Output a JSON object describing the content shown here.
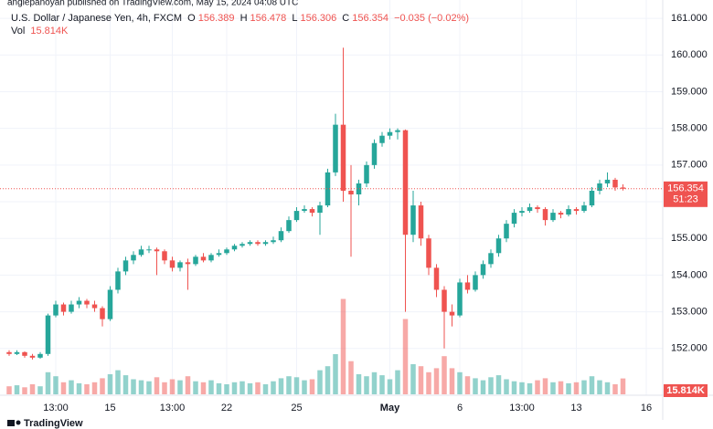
{
  "chart_data": {
    "type": "candlestick",
    "published": "anglepanoyan published on TradingView.com, May 15, 2024 04:08 UTC",
    "title": "U.S. Dollar / Japanese Yen, 4h, FXCM",
    "ohlc_letters": [
      "O",
      "H",
      "L",
      "C"
    ],
    "change": "−0.035 (−0.02%)",
    "countdown": "51:23",
    "brand": "TradingView",
    "up_color": "#26a69a",
    "down_color": "#ef5350",
    "grid": true,
    "ylim": [
      150.8,
      161.5
    ],
    "yticks": [
      {
        "value": 152,
        "label": "152.000"
      },
      {
        "value": 153,
        "label": "153.000"
      },
      {
        "value": 154,
        "label": "154.000"
      },
      {
        "value": 155,
        "label": "155.000"
      },
      {
        "value": 156,
        "label": "156.000"
      },
      {
        "value": 157,
        "label": "157.000"
      },
      {
        "value": 158,
        "label": "158.000"
      },
      {
        "value": 159,
        "label": "159.000"
      },
      {
        "value": 160,
        "label": "160.000"
      },
      {
        "value": 161,
        "label": "161.000"
      }
    ],
    "categories": [
      null,
      null,
      null,
      null,
      null,
      null,
      "13:00",
      null,
      null,
      null,
      null,
      null,
      null,
      "15",
      null,
      null,
      null,
      null,
      null,
      null,
      null,
      "13:00",
      null,
      null,
      null,
      null,
      null,
      null,
      "22",
      null,
      null,
      null,
      null,
      null,
      null,
      null,
      null,
      "25",
      null,
      null,
      null,
      null,
      null,
      null,
      null,
      null,
      null,
      null,
      null,
      "May",
      null,
      null,
      null,
      null,
      null,
      null,
      null,
      null,
      "6",
      null,
      null,
      null,
      null,
      null,
      null,
      null,
      "13:00",
      null,
      null,
      null,
      null,
      null,
      null,
      "13",
      null,
      null,
      null,
      null,
      null,
      null,
      null,
      null,
      "16"
    ],
    "candles": [
      [
        151.9,
        151.95,
        151.8,
        151.85
      ],
      [
        151.85,
        151.95,
        151.82,
        151.9
      ],
      [
        151.9,
        151.92,
        151.75,
        151.8
      ],
      [
        151.8,
        151.85,
        151.7,
        151.75
      ],
      [
        151.75,
        151.9,
        151.72,
        151.85
      ],
      [
        151.85,
        152.95,
        151.8,
        152.9
      ],
      [
        152.9,
        153.3,
        152.85,
        153.2
      ],
      [
        153.2,
        153.25,
        152.9,
        153.0
      ],
      [
        153.0,
        153.3,
        152.95,
        153.2
      ],
      [
        153.2,
        153.4,
        153.1,
        153.3
      ],
      [
        153.3,
        153.35,
        153.1,
        153.2
      ],
      [
        153.2,
        153.3,
        153.0,
        153.1
      ],
      [
        153.1,
        153.15,
        152.6,
        152.8
      ],
      [
        152.8,
        153.7,
        152.75,
        153.6
      ],
      [
        153.6,
        154.2,
        153.5,
        154.1
      ],
      [
        154.1,
        154.5,
        154.0,
        154.4
      ],
      [
        154.4,
        154.65,
        154.3,
        154.55
      ],
      [
        154.55,
        154.8,
        154.5,
        154.7
      ],
      [
        154.7,
        154.8,
        154.6,
        154.7
      ],
      [
        154.7,
        154.75,
        154.0,
        154.65
      ],
      [
        154.65,
        154.7,
        154.3,
        154.4
      ],
      [
        154.4,
        154.5,
        154.1,
        154.2
      ],
      [
        154.2,
        154.4,
        154.1,
        154.35
      ],
      [
        154.35,
        154.45,
        153.6,
        154.3
      ],
      [
        154.3,
        154.55,
        154.25,
        154.5
      ],
      [
        154.5,
        154.6,
        154.35,
        154.4
      ],
      [
        154.4,
        154.6,
        154.35,
        154.55
      ],
      [
        154.55,
        154.7,
        154.5,
        154.6
      ],
      [
        154.6,
        154.75,
        154.55,
        154.7
      ],
      [
        154.7,
        154.85,
        154.65,
        154.8
      ],
      [
        154.8,
        154.9,
        154.75,
        154.85
      ],
      [
        154.85,
        154.95,
        154.8,
        154.9
      ],
      [
        154.9,
        154.95,
        154.8,
        154.85
      ],
      [
        154.85,
        154.95,
        154.8,
        154.9
      ],
      [
        154.9,
        155.05,
        154.85,
        154.95
      ],
      [
        154.95,
        155.3,
        154.9,
        155.2
      ],
      [
        155.2,
        155.6,
        155.15,
        155.5
      ],
      [
        155.5,
        155.85,
        155.45,
        155.75
      ],
      [
        155.75,
        155.9,
        155.7,
        155.8
      ],
      [
        155.8,
        155.85,
        155.6,
        155.7
      ],
      [
        155.7,
        156.0,
        155.1,
        155.9
      ],
      [
        155.9,
        156.9,
        155.85,
        156.8
      ],
      [
        156.8,
        158.4,
        156.7,
        158.1
      ],
      [
        158.1,
        160.2,
        156.0,
        156.3
      ],
      [
        156.3,
        157.0,
        154.5,
        156.2
      ],
      [
        156.2,
        156.6,
        155.9,
        156.5
      ],
      [
        156.5,
        157.1,
        156.4,
        157.0
      ],
      [
        157.0,
        157.7,
        156.9,
        157.6
      ],
      [
        157.6,
        157.9,
        157.5,
        157.8
      ],
      [
        157.8,
        158.0,
        157.7,
        157.9
      ],
      [
        157.9,
        158.0,
        157.7,
        157.95
      ],
      [
        157.95,
        157.97,
        153.0,
        155.1
      ],
      [
        155.1,
        156.3,
        154.9,
        155.9
      ],
      [
        155.9,
        156.0,
        154.8,
        155.0
      ],
      [
        155.0,
        155.1,
        154.0,
        154.2
      ],
      [
        154.2,
        154.3,
        153.4,
        153.6
      ],
      [
        153.6,
        153.7,
        152.0,
        153.0
      ],
      [
        153.0,
        153.2,
        152.6,
        152.9
      ],
      [
        152.9,
        153.9,
        152.85,
        153.8
      ],
      [
        153.8,
        154.0,
        153.5,
        153.6
      ],
      [
        153.6,
        154.1,
        153.55,
        154.0
      ],
      [
        154.0,
        154.4,
        153.9,
        154.3
      ],
      [
        154.3,
        154.7,
        154.2,
        154.6
      ],
      [
        154.6,
        155.1,
        154.5,
        155.0
      ],
      [
        155.0,
        155.5,
        154.9,
        155.4
      ],
      [
        155.4,
        155.8,
        155.3,
        155.7
      ],
      [
        155.7,
        155.85,
        155.6,
        155.75
      ],
      [
        155.75,
        155.95,
        155.7,
        155.85
      ],
      [
        155.85,
        155.9,
        155.7,
        155.8
      ],
      [
        155.8,
        155.85,
        155.35,
        155.5
      ],
      [
        155.5,
        155.8,
        155.45,
        155.7
      ],
      [
        155.7,
        155.75,
        155.55,
        155.65
      ],
      [
        155.65,
        155.9,
        155.6,
        155.8
      ],
      [
        155.8,
        155.85,
        155.65,
        155.75
      ],
      [
        155.75,
        156.0,
        155.7,
        155.9
      ],
      [
        155.9,
        156.4,
        155.85,
        156.3
      ],
      [
        156.3,
        156.6,
        156.2,
        156.5
      ],
      [
        156.5,
        156.8,
        156.4,
        156.6
      ],
      [
        156.6,
        156.65,
        156.3,
        156.389
      ],
      [
        156.389,
        156.478,
        156.306,
        156.354
      ],
      null,
      null,
      null
    ],
    "volume": {
      "name": "Vol",
      "last_label": "15.814K",
      "ylim": [
        0,
        100
      ],
      "values": [
        8,
        9,
        7,
        10,
        8,
        22,
        18,
        12,
        14,
        11,
        10,
        12,
        16,
        20,
        24,
        19,
        15,
        14,
        13,
        17,
        12,
        15,
        14,
        18,
        13,
        12,
        14,
        11,
        10,
        12,
        13,
        11,
        12,
        10,
        13,
        16,
        18,
        17,
        14,
        15,
        24,
        28,
        40,
        95,
        33,
        20,
        18,
        22,
        19,
        15,
        24,
        75,
        30,
        28,
        22,
        26,
        38,
        26,
        22,
        18,
        16,
        14,
        17,
        19,
        15,
        13,
        12,
        11,
        14,
        16,
        12,
        13,
        11,
        12,
        14,
        18,
        14,
        12,
        10,
        15.814,
        null,
        null,
        null
      ]
    }
  }
}
